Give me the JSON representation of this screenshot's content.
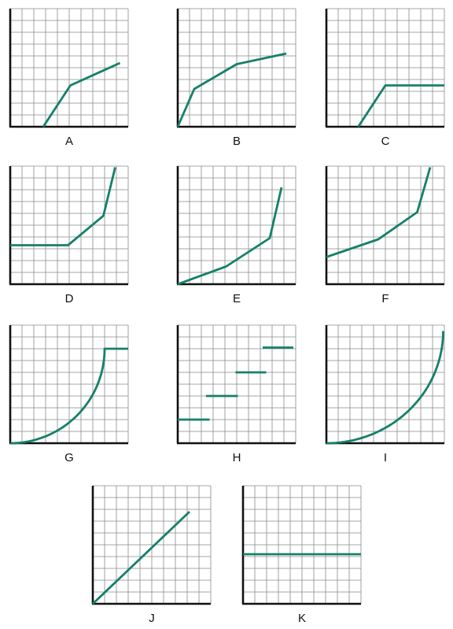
{
  "style": {
    "line_color": "#15806a",
    "grid_color": "#8a8a8a",
    "axis_color": "#111111"
  },
  "chart_data": [
    {
      "label": "A",
      "type": "line",
      "xlim": [
        0,
        10
      ],
      "ylim": [
        0,
        10
      ],
      "grid": true,
      "segments": [
        [
          [
            2.8,
            0
          ],
          [
            5.1,
            3.5
          ],
          [
            9.3,
            5.4
          ]
        ]
      ]
    },
    {
      "label": "B",
      "type": "line",
      "xlim": [
        0,
        10
      ],
      "ylim": [
        0,
        10
      ],
      "grid": true,
      "segments": [
        [
          [
            0,
            0
          ],
          [
            1.4,
            3.2
          ],
          [
            5,
            5.3
          ],
          [
            9.2,
            6.2
          ]
        ]
      ]
    },
    {
      "label": "C",
      "type": "line",
      "xlim": [
        0,
        10
      ],
      "ylim": [
        0,
        10
      ],
      "grid": true,
      "segments": [
        [
          [
            2.7,
            0
          ],
          [
            5,
            3.5
          ],
          [
            10,
            3.5
          ]
        ]
      ]
    },
    {
      "label": "D",
      "type": "line",
      "xlim": [
        0,
        10
      ],
      "ylim": [
        0,
        10
      ],
      "grid": true,
      "segments": [
        [
          [
            0,
            3.3
          ],
          [
            4.9,
            3.3
          ],
          [
            7.9,
            5.8
          ],
          [
            8.9,
            9.9
          ]
        ]
      ]
    },
    {
      "label": "E",
      "type": "line",
      "xlim": [
        0,
        10
      ],
      "ylim": [
        0,
        10
      ],
      "grid": true,
      "segments": [
        [
          [
            0,
            0
          ],
          [
            4.1,
            1.5
          ],
          [
            7.8,
            3.9
          ],
          [
            8.8,
            8.2
          ]
        ]
      ]
    },
    {
      "label": "F",
      "type": "line",
      "xlim": [
        0,
        10
      ],
      "ylim": [
        0,
        10
      ],
      "grid": true,
      "segments": [
        [
          [
            0,
            2.3
          ],
          [
            4.4,
            3.8
          ],
          [
            7.7,
            6.1
          ],
          [
            8.8,
            9.9
          ]
        ]
      ]
    },
    {
      "label": "G",
      "type": "line",
      "xlim": [
        0,
        10
      ],
      "ylim": [
        0,
        10
      ],
      "grid": true,
      "curve": {
        "kind": "saturating",
        "x0": 0,
        "y0": 0,
        "x1": 8,
        "y1": 8,
        "hold_to": 10
      }
    },
    {
      "label": "H",
      "type": "line",
      "xlim": [
        0,
        10
      ],
      "ylim": [
        0,
        10
      ],
      "grid": true,
      "segments": [
        [
          [
            0,
            2
          ],
          [
            2.7,
            2
          ]
        ],
        [
          [
            2.4,
            4
          ],
          [
            5.1,
            4
          ]
        ],
        [
          [
            4.9,
            6
          ],
          [
            7.5,
            6
          ]
        ],
        [
          [
            7.2,
            8.1
          ],
          [
            9.8,
            8.1
          ]
        ]
      ]
    },
    {
      "label": "I",
      "type": "line",
      "xlim": [
        0,
        10
      ],
      "ylim": [
        0,
        10
      ],
      "grid": true,
      "curve": {
        "kind": "saturating",
        "x0": 0,
        "y0": 0,
        "x1": 9.9,
        "y1": 9.5,
        "hold_to": 9.9
      }
    },
    {
      "label": "J",
      "type": "line",
      "xlim": [
        0,
        10
      ],
      "ylim": [
        0,
        10
      ],
      "grid": true,
      "segments": [
        [
          [
            0,
            0
          ],
          [
            8.2,
            7.8
          ]
        ]
      ]
    },
    {
      "label": "K",
      "type": "line",
      "xlim": [
        0,
        10
      ],
      "ylim": [
        0,
        10
      ],
      "grid": true,
      "segments": [
        [
          [
            0,
            4.2
          ],
          [
            10,
            4.2
          ]
        ]
      ]
    }
  ]
}
